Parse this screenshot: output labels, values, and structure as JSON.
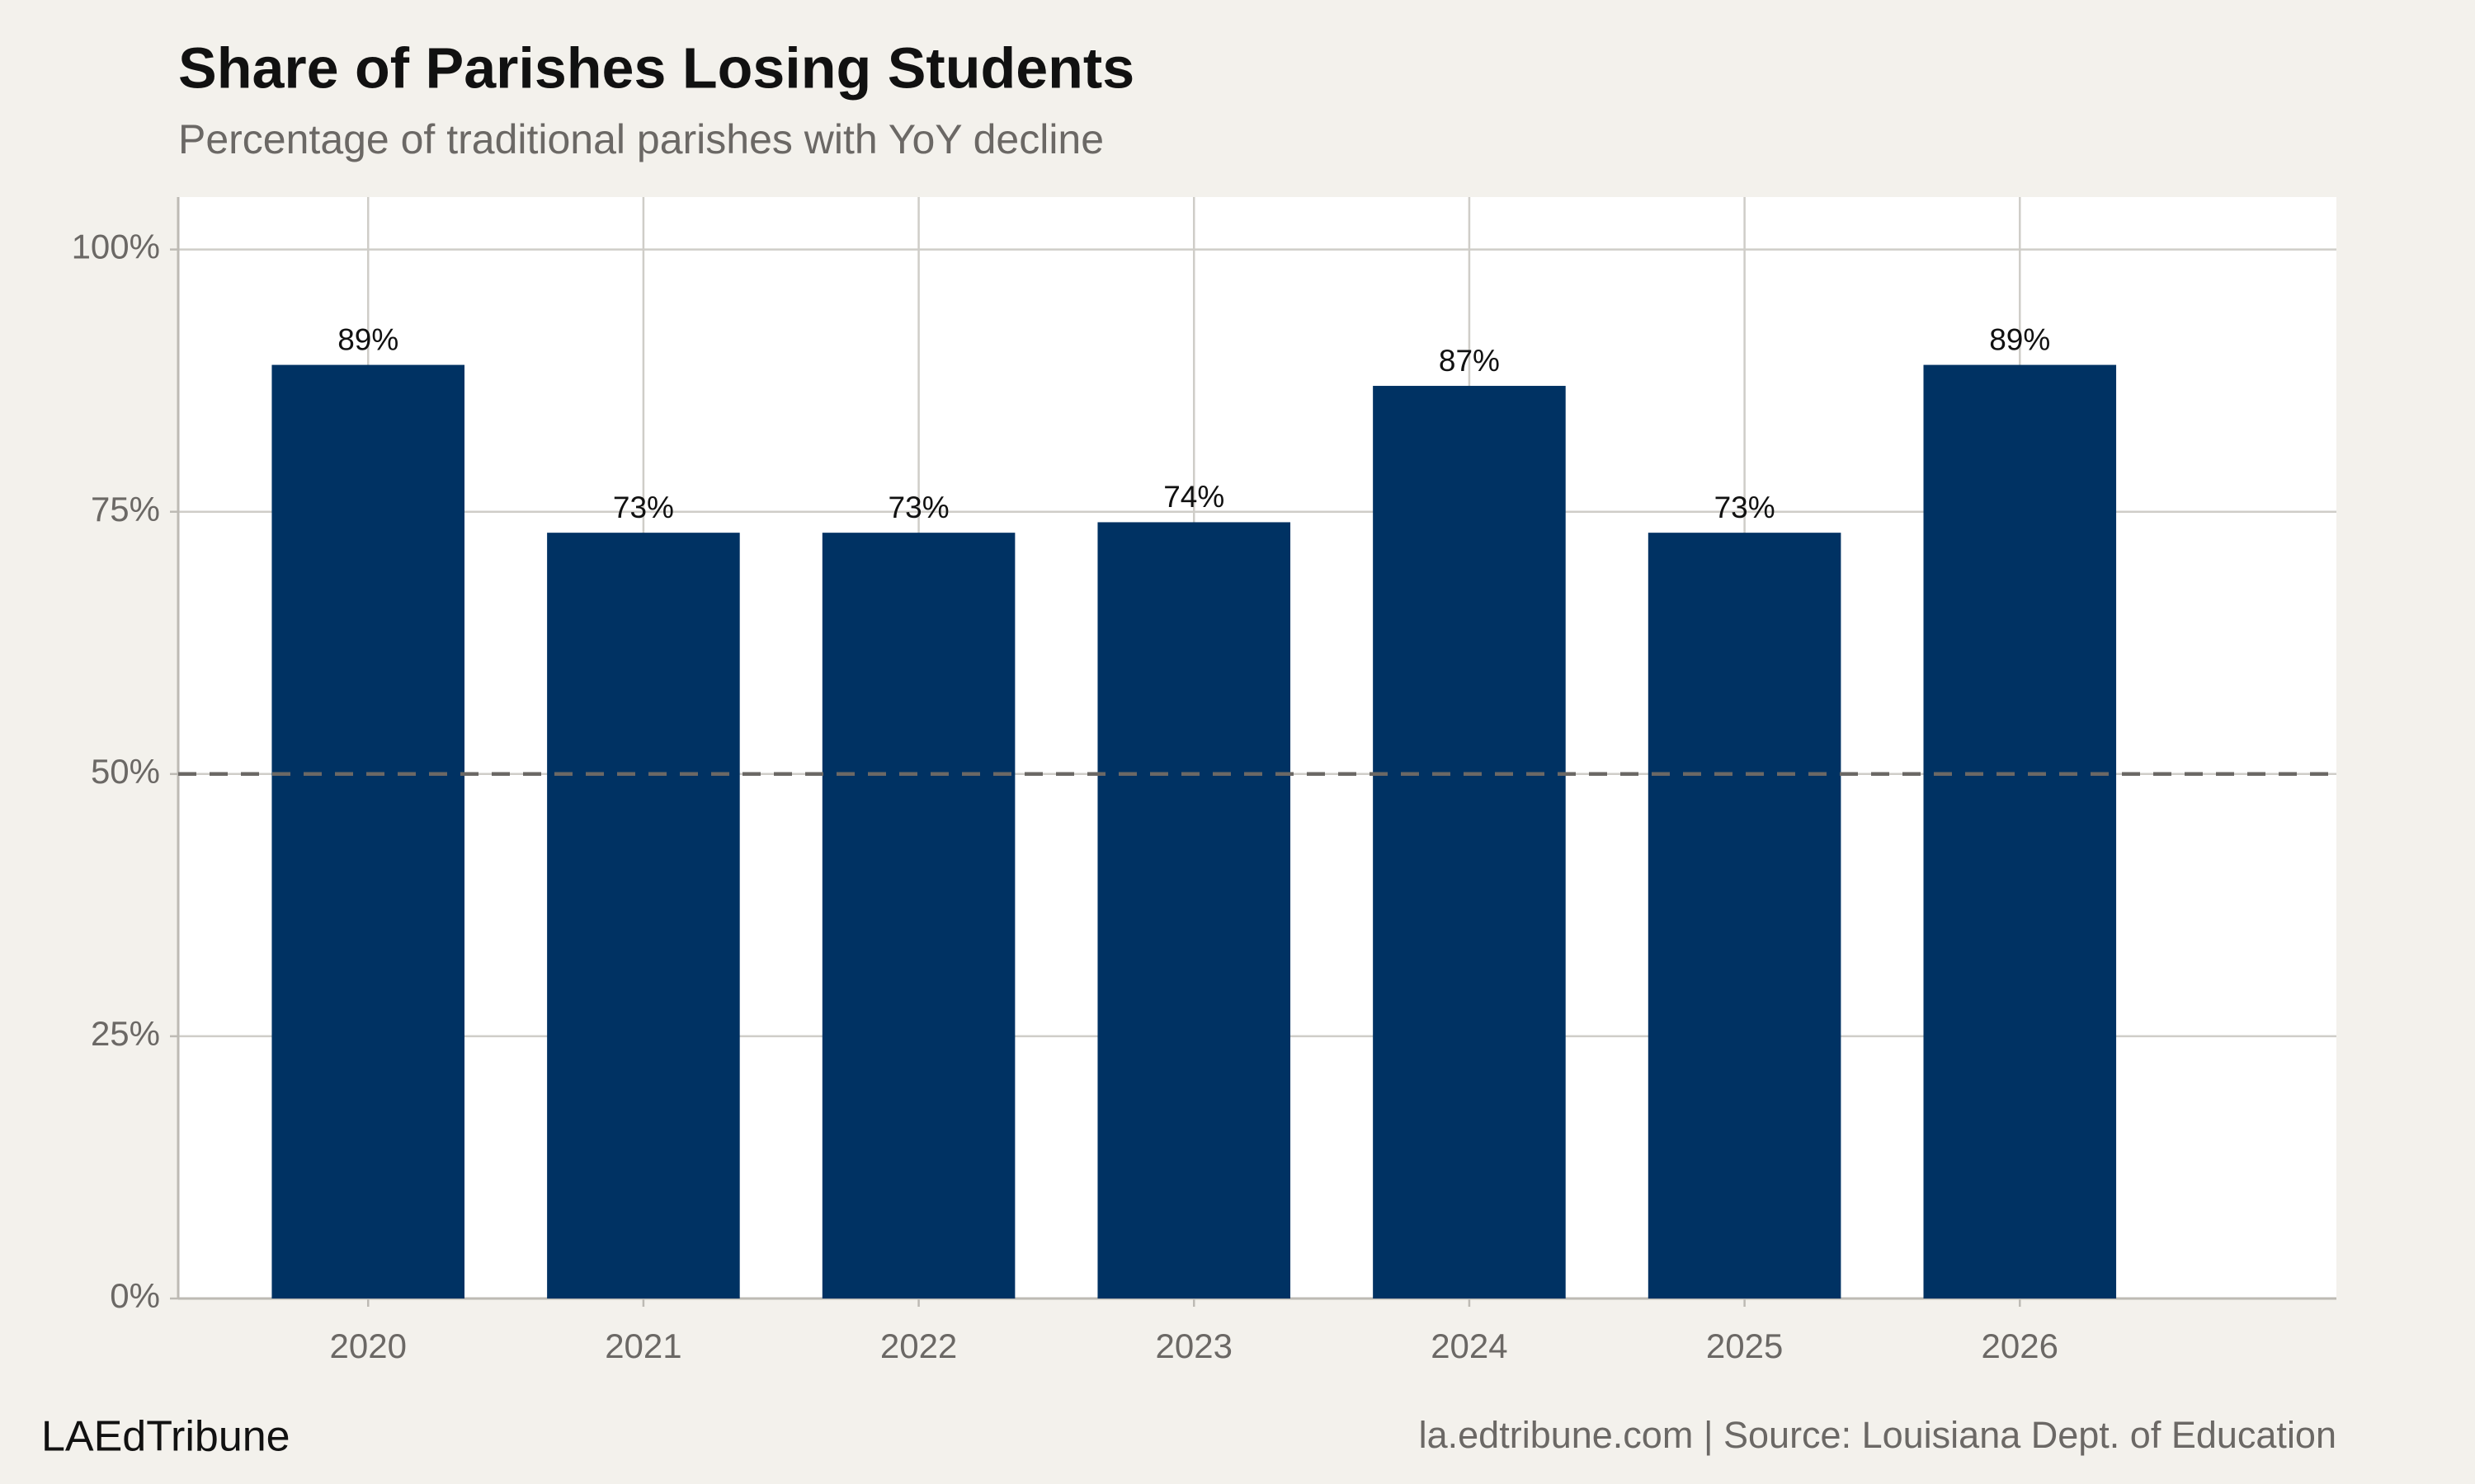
{
  "chart_data": {
    "type": "bar",
    "title": "Share of Parishes Losing Students",
    "subtitle": "Percentage of traditional parishes with YoY decline",
    "x": [
      2020,
      2021,
      2022,
      2023,
      2024,
      2025,
      2026
    ],
    "values": [
      89,
      73,
      73,
      74,
      87,
      73,
      89
    ],
    "value_labels": [
      "89%",
      "73%",
      "73%",
      "74%",
      "87%",
      "73%",
      "89%"
    ],
    "color": "#003263",
    "xlim": [
      2019.31,
      2027.15
    ],
    "xticks": [
      2020,
      2021,
      2022,
      2023,
      2024,
      2025,
      2026
    ],
    "ylim": [
      0,
      105
    ],
    "yticks": [
      {
        "value": 0,
        "label": "0%"
      },
      {
        "value": 25,
        "label": "25%"
      },
      {
        "value": 50,
        "label": "50%"
      },
      {
        "value": 75,
        "label": "75%"
      },
      {
        "value": 100,
        "label": "100%"
      }
    ],
    "grid": true,
    "reference_line": 50,
    "brand": "LAEdTribune",
    "caption": "la.edtribune.com | Source: Louisiana Dept. of Education"
  }
}
